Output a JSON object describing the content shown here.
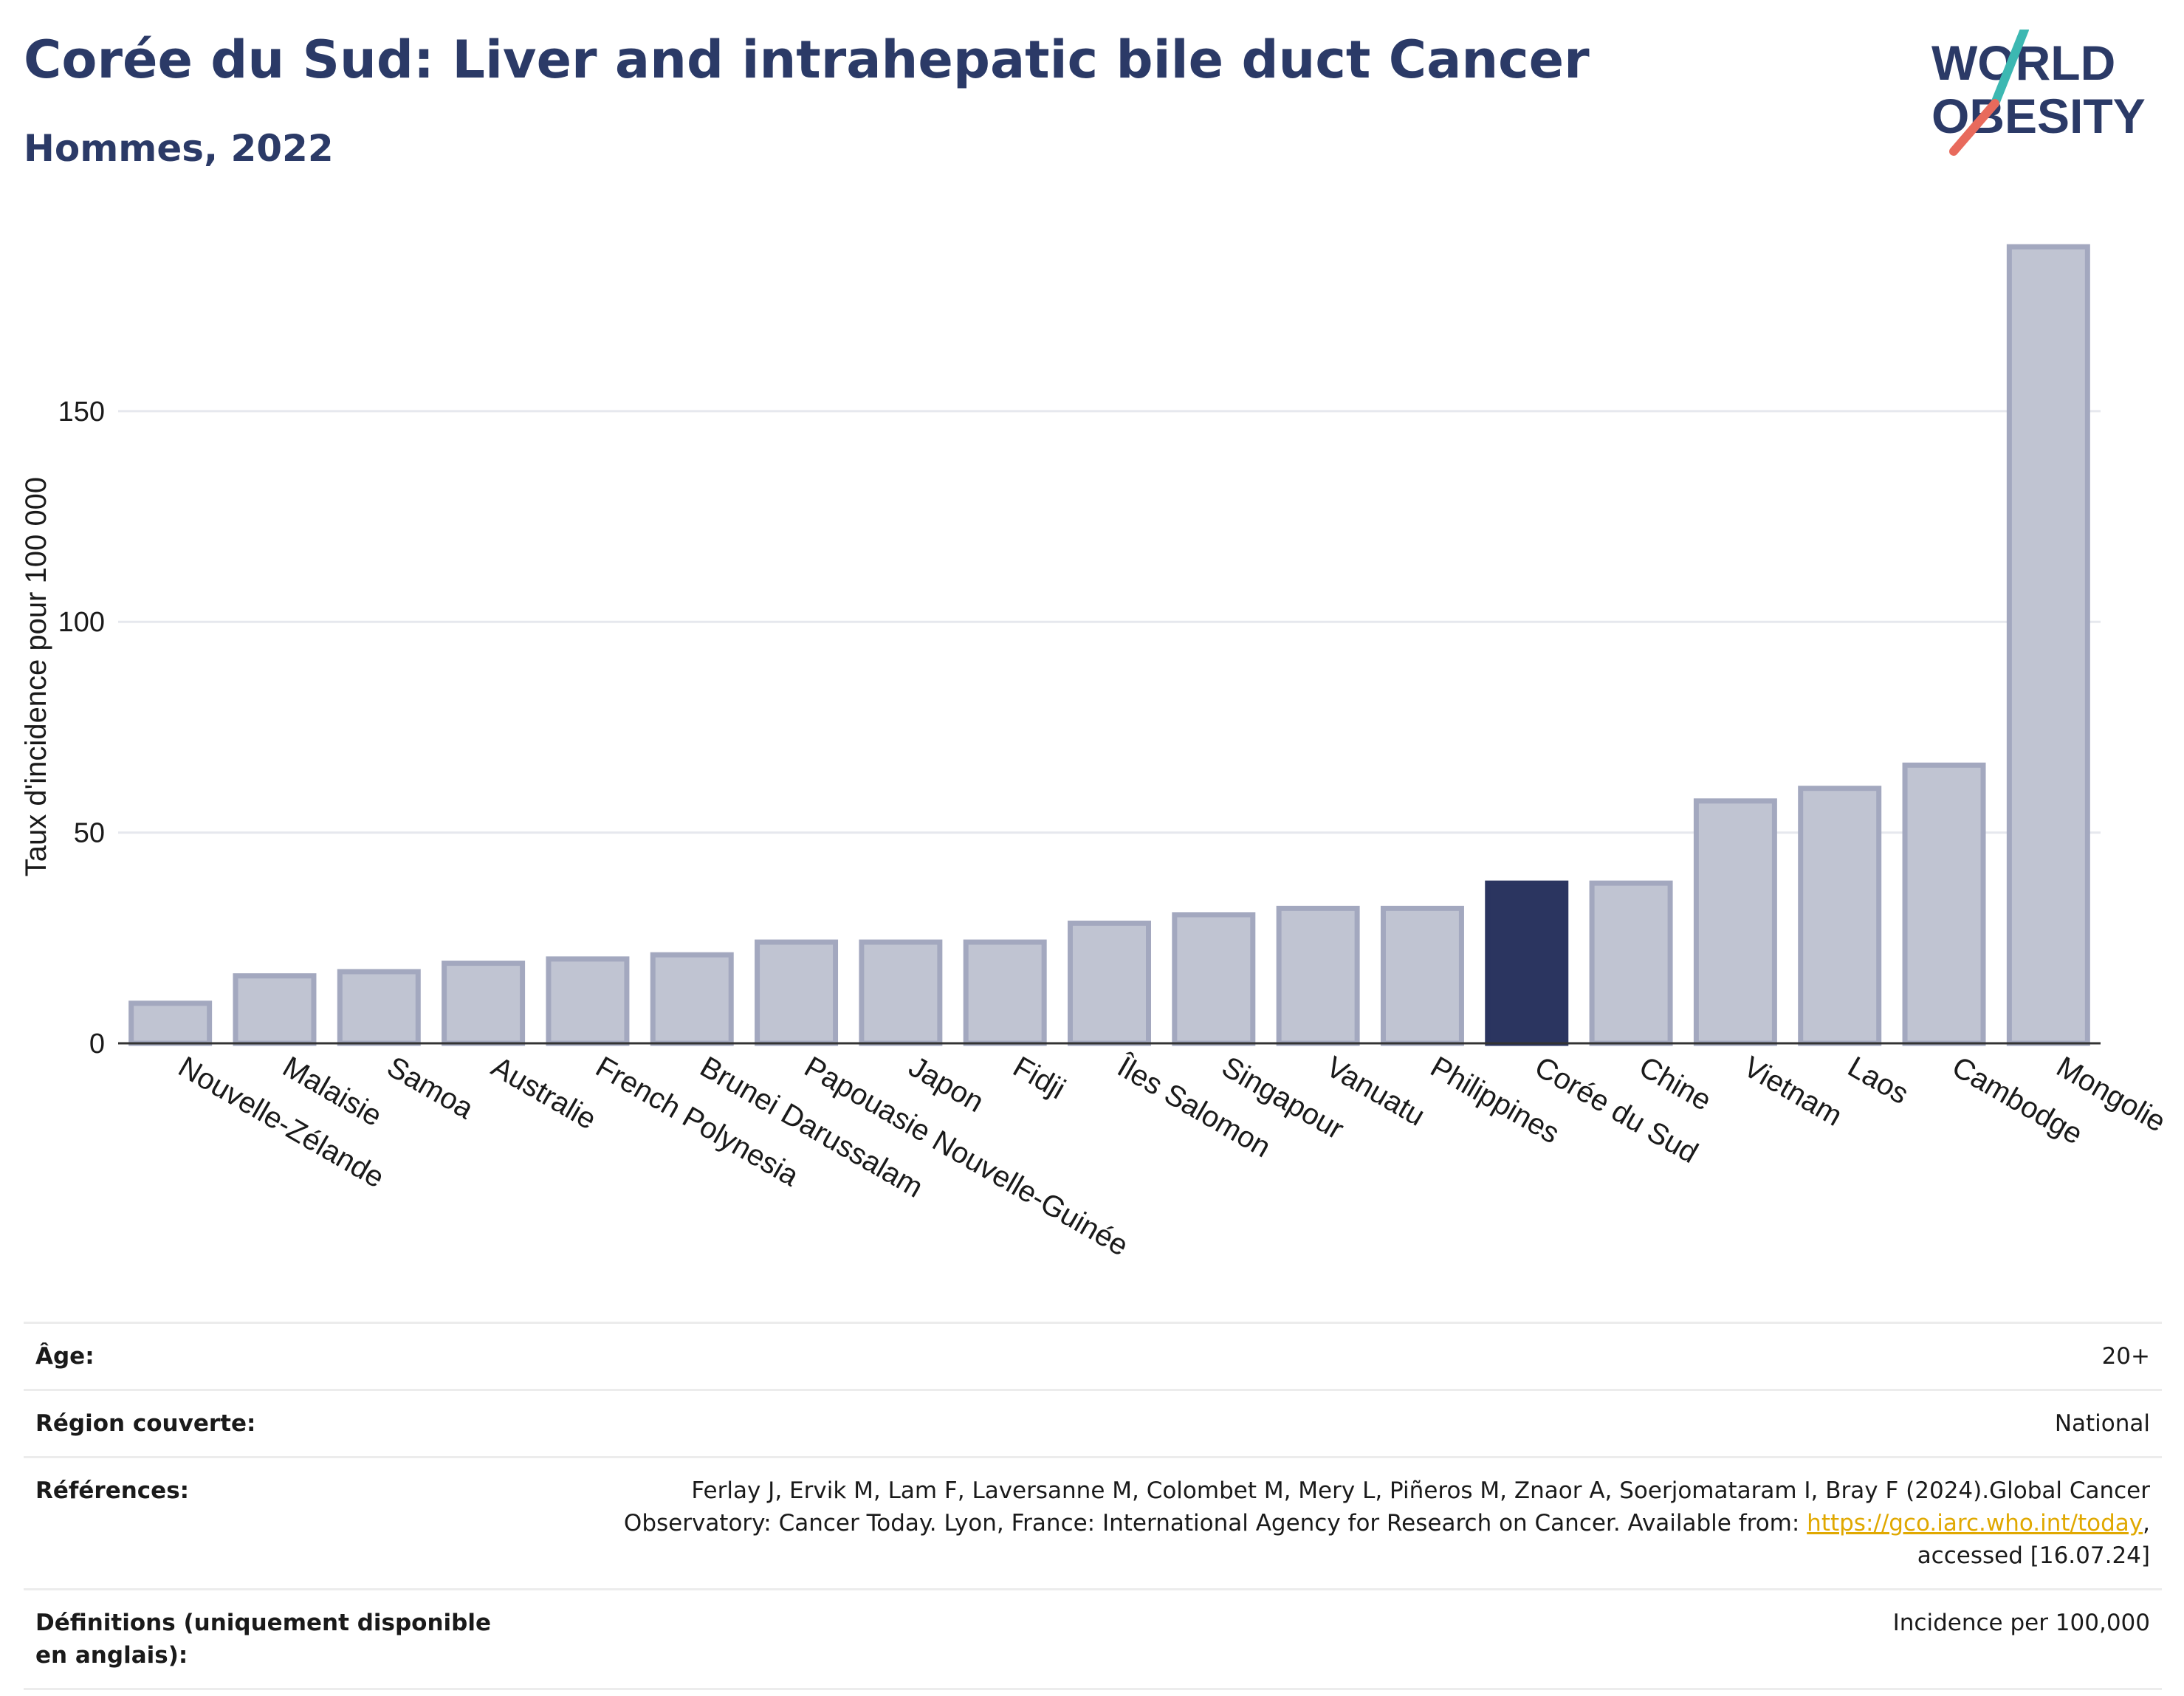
{
  "header": {
    "title": "Corée du Sud: Liver and intrahepatic bile duct Cancer",
    "subtitle": "Hommes, 2022"
  },
  "logo": {
    "line1": "WORLD",
    "line2": "OBESITY"
  },
  "colors": {
    "highlight_bar": "#2b3560",
    "other_bar_fill": "#c0c4d2",
    "other_bar_stroke": "#a3a8bf",
    "text_dark": "#2b3a67",
    "link": "#e0a800"
  },
  "chart_data": {
    "type": "bar",
    "ylabel": "Taux d'incidence pour 100 000",
    "ylim": [
      0,
      195
    ],
    "yticks": [
      0,
      50,
      100,
      150
    ],
    "grid": true,
    "highlight": "Corée du Sud",
    "categories": [
      "Nouvelle-Zélande",
      "Malaisie",
      "Samoa",
      "Australie",
      "French Polynesia",
      "Brunei Darussalam",
      "Papouasie Nouvelle-Guinée",
      "Japon",
      "Fidji",
      "Îles Salomon",
      "Singapour",
      "Vanuatu",
      "Philippines",
      "Corée du Sud",
      "Chine",
      "Vietnam",
      "Laos",
      "Cambodge",
      "Mongolie"
    ],
    "values": [
      9.5,
      16,
      17,
      19,
      20,
      21,
      24,
      24,
      24,
      28.5,
      30.5,
      32,
      32,
      38,
      38,
      57.5,
      60.5,
      66,
      189
    ]
  },
  "meta": {
    "age_label": "Âge:",
    "age_value": "20+",
    "region_label": "Région couverte:",
    "region_value": "National",
    "references_label": "Références:",
    "references_text_1": "Ferlay J, Ervik M, Lam F, Laversanne M, Colombet M, Mery L, Piñeros M, Znaor A, Soerjomataram I, Bray F (2024).Global Cancer",
    "references_text_2": "Observatory: Cancer Today. Lyon, France: International Agency for Research on Cancer. Available from: ",
    "references_link": "https://gco.iarc.who.int/today",
    "references_text_3": ",",
    "references_text_4": "accessed [16.07.24]",
    "definitions_label": "Définitions (uniquement disponible en anglais):",
    "definitions_value": "Incidence per 100,000"
  }
}
